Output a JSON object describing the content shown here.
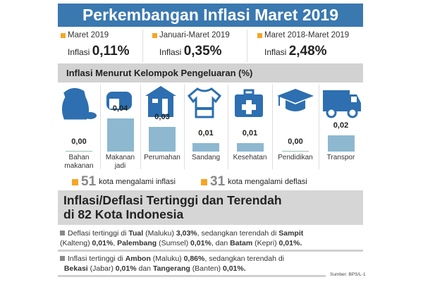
{
  "title": "Perkembangan Inflasi Maret 2019",
  "stats": [
    {
      "period": "Maret 2019",
      "label": "Inflasi",
      "value": "0,11%"
    },
    {
      "period": "Januari-Maret 2019",
      "label": "Inflasi",
      "value": "0,35%"
    },
    {
      "period": "Maret 2018-Maret 2019",
      "label": "Inflasi",
      "value": "2,48%"
    }
  ],
  "colors": {
    "title_bg": "#3a78b0",
    "accent": "#f5a623",
    "bar": "#8db8d0",
    "icon": "#2d6fb0"
  },
  "chart_data": {
    "type": "bar",
    "title": "Inflasi Menurut Kelompok Pengeluaran (%)",
    "categories": [
      "Bahan makanan",
      "Makanan jadi",
      "Perumahan",
      "Sandang",
      "Kesehatan",
      "Pendidikan",
      "Transpor"
    ],
    "values": [
      0.0,
      0.04,
      0.03,
      0.01,
      0.01,
      0.0,
      0.02
    ],
    "value_labels": [
      "0,00",
      "0,04",
      "0,03",
      "0,01",
      "0,01",
      "0,00",
      "0,02"
    ],
    "icons": [
      "rice-sack-icon",
      "bread-icon",
      "house-icon",
      "shirt-icon",
      "medical-kit-icon",
      "graduation-cap-icon",
      "truck-icon"
    ]
  },
  "legend": [
    {
      "count": "51",
      "text": "kota mengalami inflasi"
    },
    {
      "count": "31",
      "text": "kota mengalami deflasi"
    }
  ],
  "section2": {
    "title_line1": "Inflasi/Deflasi Tertinggi dan Terendah",
    "title_line2": "di 82 Kota Indonesia",
    "bullet1": {
      "t1": "Deflasi tertinggi di ",
      "b1": "Tual",
      "t2": " (Maluku) ",
      "b2": "3,03%",
      "t3": ", sedangkan terendah di ",
      "b3": "Sampit",
      "t4": " (Kalteng) ",
      "b4": "0,01%",
      "t5": ", ",
      "b5": "Palembang",
      "t6": " (Sumsel) ",
      "b6": "0,01%",
      "t7": ", dan ",
      "b7": "Batam",
      "t8": " (Kepri) ",
      "b8": "0,01%."
    },
    "bullet2": {
      "t1": "Inflasi tertinggi di ",
      "b1": "Ambon",
      "t2": " (Maluku) ",
      "b2": "0,86%",
      "t3": ", sedangkan terendah di ",
      "b3": "Bekasi",
      "t4": " (Jabar) ",
      "b4": "0,01%",
      "t5": " dan ",
      "b5": "Tangerang",
      "t6": " (Banten) ",
      "b6": "0,01%."
    }
  },
  "source": "Sumber: BPS/L-1"
}
